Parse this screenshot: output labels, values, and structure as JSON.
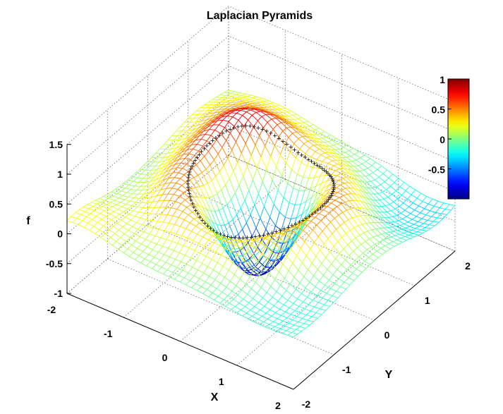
{
  "chart_data": {
    "type": "surface",
    "title": "Laplacian Pyramids",
    "xlabel": "X",
    "ylabel": "Y",
    "zlabel": "f",
    "xlim": [
      -2,
      2
    ],
    "ylim": [
      -2,
      2
    ],
    "zlim": [
      -1,
      1.5
    ],
    "x_ticks": [
      "-2",
      "-1",
      "0",
      "1",
      "2"
    ],
    "y_ticks": [
      "-2",
      "-1",
      "0",
      "1",
      "2"
    ],
    "z_ticks": [
      "-1",
      "-0.5",
      "0",
      "0.5",
      "1",
      "1.5"
    ],
    "colorbar": {
      "ticks": [
        "1",
        "0.5",
        "0",
        "-0.5"
      ],
      "range": [
        -1,
        1
      ],
      "colormap": "jet"
    },
    "grid": true,
    "surface": {
      "style": "mesh",
      "grid_resolution": 41,
      "model": "0.7*(1-exp(-r^2/0.5)) - 1.1*exp(-2.5*(|y|-0.1)^2 - 0.5*(x-0.3)^2)*(0.3<|y|<2 dip band) approx; rim ring r~1",
      "description_points": [
        {
          "x": -2,
          "y": -2,
          "f": 0.6
        },
        {
          "x": 2,
          "y": -2,
          "f": 0.0
        },
        {
          "x": 2,
          "y": 2,
          "f": -0.2
        },
        {
          "x": -2,
          "y": 2,
          "f": 0.2
        },
        {
          "x": 0,
          "y": 0,
          "f": -0.8
        },
        {
          "x": -1,
          "y": 1,
          "f": 1.0
        },
        {
          "x": 1,
          "y": -1,
          "f": 0.5
        }
      ]
    },
    "markers": {
      "symbol": "+",
      "color": "#000000",
      "description": "points along ring r≈1"
    }
  }
}
